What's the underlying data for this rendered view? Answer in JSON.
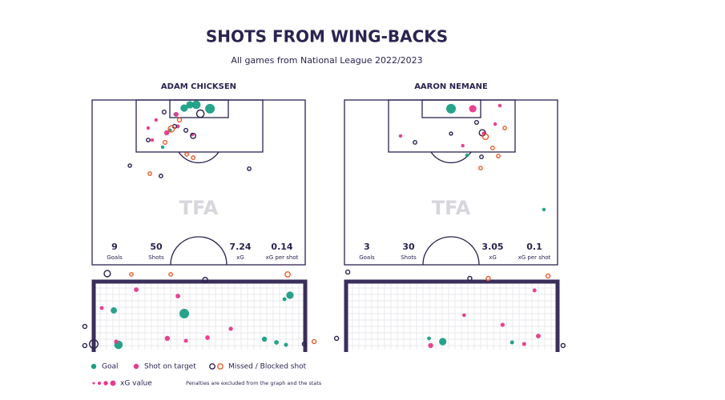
{
  "title": "SHOTS FROM WING-BACKS",
  "subtitle": "All games from National League 2022/2023",
  "watermark": "TFA",
  "markers": [
    {
      "color": "#1a9e84",
      "filled": true
    },
    {
      "color": "#e8388a",
      "filled": true
    },
    {
      "color": "#2b2350",
      "filled": false
    },
    {
      "color": "#ea5a2b",
      "filled": false
    }
  ],
  "legend": [
    {
      "label": "Goal",
      "markers": [
        0
      ]
    },
    {
      "label": "Shot on target",
      "markers": [
        1
      ]
    },
    {
      "label": "Missed / Blocked shot",
      "markers": [
        2,
        3
      ]
    }
  ],
  "xg_legend": "xG value",
  "note": "Penalties are excluded from the graph and the stats",
  "players": [
    {
      "name": "ADAM CHICKSEN",
      "stats": [
        {
          "value": 9,
          "label": "Goals"
        },
        {
          "value": 50,
          "label": "Shots"
        },
        {
          "value": 7.24,
          "label": "xG"
        },
        {
          "value": 0.14,
          "label": "xG per shot"
        }
      ],
      "shots": [
        {
          "x": 55.3,
          "y": 5.3,
          "xg": 0.3,
          "m": 0
        },
        {
          "x": 48.9,
          "y": 2.9,
          "xg": 0.25,
          "m": 0
        },
        {
          "x": 43.2,
          "y": 4.9,
          "xg": 0.2,
          "m": 0
        },
        {
          "x": 45.9,
          "y": 2.9,
          "xg": 0.2,
          "m": 0
        },
        {
          "x": 39.1,
          "y": 8.7,
          "xg": 0.05,
          "m": 0
        },
        {
          "x": 36.5,
          "y": 18.4,
          "xg": 0.04,
          "m": 0
        },
        {
          "x": 33.1,
          "y": 28.6,
          "xg": 0.03,
          "m": 0
        },
        {
          "x": 35,
          "y": 19.9,
          "xg": 0.1,
          "m": 1
        },
        {
          "x": 39.5,
          "y": 8.7,
          "xg": 0.08,
          "m": 1
        },
        {
          "x": 26.3,
          "y": 17,
          "xg": 0.03,
          "m": 1
        },
        {
          "x": 30,
          "y": 12.1,
          "xg": 0.03,
          "m": 1
        },
        {
          "x": 47,
          "y": 20.9,
          "xg": 0.04,
          "m": 1
        },
        {
          "x": 40.2,
          "y": 16,
          "xg": 0.05,
          "m": 1
        },
        {
          "x": 28.2,
          "y": 24.3,
          "xg": 0.03,
          "m": 1
        },
        {
          "x": 50.8,
          "y": 8.3,
          "xg": 0.2,
          "m": 2
        },
        {
          "x": 47.4,
          "y": 21.8,
          "xg": 0.1,
          "m": 2
        },
        {
          "x": 17.7,
          "y": 39.8,
          "xg": 0.02,
          "m": 2
        },
        {
          "x": 32.3,
          "y": 46.1,
          "xg": 0.03,
          "m": 2
        },
        {
          "x": 73.7,
          "y": 41.7,
          "xg": 0.03,
          "m": 2
        },
        {
          "x": 26.3,
          "y": 24.3,
          "xg": 0.03,
          "m": 2
        },
        {
          "x": 44,
          "y": 18.4,
          "xg": 0.04,
          "m": 2
        },
        {
          "x": 38.7,
          "y": 16,
          "xg": 0.04,
          "m": 2
        },
        {
          "x": 33.8,
          "y": 7.3,
          "xg": 0.04,
          "m": 2
        },
        {
          "x": 37.2,
          "y": 17.5,
          "xg": 0.15,
          "m": 3
        },
        {
          "x": 27.1,
          "y": 44.7,
          "xg": 0.03,
          "m": 3
        },
        {
          "x": 44.4,
          "y": 33,
          "xg": 0.03,
          "m": 3
        },
        {
          "x": 34.2,
          "y": 25.7,
          "xg": 0.04,
          "m": 3
        },
        {
          "x": 47.4,
          "y": 35,
          "xg": 0.03,
          "m": 3
        },
        {
          "x": 41,
          "y": 12.1,
          "xg": 0.05,
          "m": 3
        }
      ],
      "goal_shots": [
        {
          "x": 92.8,
          "y": 20,
          "xg": 0.2,
          "m": 0
        },
        {
          "x": 90.2,
          "y": 25.9,
          "xg": 0.05,
          "m": 0
        },
        {
          "x": 42.8,
          "y": 47,
          "xg": 0.3,
          "m": 0
        },
        {
          "x": 9.5,
          "y": 42.4,
          "xg": 0.15,
          "m": 0
        },
        {
          "x": 11.7,
          "y": 93,
          "xg": 0.25,
          "m": 0
        },
        {
          "x": 80.7,
          "y": 84.7,
          "xg": 0.1,
          "m": 0
        },
        {
          "x": 86.4,
          "y": 89.4,
          "xg": 0.08,
          "m": 0
        },
        {
          "x": 90.9,
          "y": 93,
          "xg": 0.05,
          "m": 0
        },
        {
          "x": 3.8,
          "y": 38.8,
          "xg": 0.05,
          "m": 1
        },
        {
          "x": 20.1,
          "y": 11.8,
          "xg": 0.08,
          "m": 1
        },
        {
          "x": 39.8,
          "y": 21.2,
          "xg": 0.08,
          "m": 1
        },
        {
          "x": 34.8,
          "y": 83.5,
          "xg": 0.1,
          "m": 1
        },
        {
          "x": 53.8,
          "y": 82.4,
          "xg": 0.08,
          "m": 1
        },
        {
          "x": 64.8,
          "y": 69.4,
          "xg": 0.06,
          "m": 1
        },
        {
          "x": 10.6,
          "y": 88.2,
          "xg": 0.06,
          "m": 1
        },
        {
          "x": 43.6,
          "y": 87,
          "xg": 0.05,
          "m": 1
        },
        {
          "x": 6.4,
          "y": -11.8,
          "xg": 0.15,
          "m": 2
        },
        {
          "x": 52.7,
          "y": -2.4,
          "xg": 0.1,
          "m": 2
        },
        {
          "x": -4.2,
          "y": 65.9,
          "xg": 0.05,
          "m": 2
        },
        {
          "x": -4.2,
          "y": 94.1,
          "xg": 0.05,
          "m": 2
        },
        {
          "x": 0,
          "y": 91.8,
          "xg": 0.25,
          "m": 2
        },
        {
          "x": 99.6,
          "y": 91.8,
          "xg": 0.05,
          "m": 2
        },
        {
          "x": 91.7,
          "y": -10.6,
          "xg": 0.1,
          "m": 3
        },
        {
          "x": 17.8,
          "y": -10.6,
          "xg": 0.03,
          "m": 3
        },
        {
          "x": 36.4,
          "y": -10.6,
          "xg": 0.03,
          "m": 3
        },
        {
          "x": 104.2,
          "y": 88.2,
          "xg": 0.05,
          "m": 3
        }
      ]
    },
    {
      "name": "AARON NEMANE",
      "stats": [
        {
          "value": 3,
          "label": "Goals"
        },
        {
          "value": 30,
          "label": "Shots"
        },
        {
          "value": 3.05,
          "label": "xG"
        },
        {
          "value": 0.1,
          "label": "xG per shot"
        }
      ],
      "shots": [
        {
          "x": 50,
          "y": 5.3,
          "xg": 0.3,
          "m": 0
        },
        {
          "x": 57.5,
          "y": 33.5,
          "xg": 0.03,
          "m": 0
        },
        {
          "x": 93.6,
          "y": 66.5,
          "xg": 0.03,
          "m": 0
        },
        {
          "x": 60.2,
          "y": 5.3,
          "xg": 0.2,
          "m": 1
        },
        {
          "x": 65.4,
          "y": 20.4,
          "xg": 0.06,
          "m": 1
        },
        {
          "x": 72.9,
          "y": 3.4,
          "xg": 0.03,
          "m": 1
        },
        {
          "x": 70.7,
          "y": 14.6,
          "xg": 0.03,
          "m": 1
        },
        {
          "x": 26.3,
          "y": 21.8,
          "xg": 0.03,
          "m": 1
        },
        {
          "x": 55.5,
          "y": 27.7,
          "xg": 0.03,
          "m": 1
        },
        {
          "x": 64.7,
          "y": 19.9,
          "xg": 0.15,
          "m": 2
        },
        {
          "x": 62,
          "y": 13.6,
          "xg": 0.04,
          "m": 2
        },
        {
          "x": 33.1,
          "y": 25.7,
          "xg": 0.03,
          "m": 2
        },
        {
          "x": 64.3,
          "y": 34.5,
          "xg": 0.03,
          "m": 2
        },
        {
          "x": 50,
          "y": 20.4,
          "xg": 0.01,
          "m": 2
        },
        {
          "x": 66.2,
          "y": 22.3,
          "xg": 0.12,
          "m": 3
        },
        {
          "x": 63.9,
          "y": 41.3,
          "xg": 0.03,
          "m": 3
        },
        {
          "x": 69.5,
          "y": 29.1,
          "xg": 0.03,
          "m": 3
        },
        {
          "x": 75.2,
          "y": 17,
          "xg": 0.03,
          "m": 3
        },
        {
          "x": 72.2,
          "y": 34,
          "xg": 0.03,
          "m": 3
        }
      ],
      "goal_shots": [
        {
          "x": 45.7,
          "y": 88.2,
          "xg": 0.2,
          "m": 0
        },
        {
          "x": 78.5,
          "y": 89.4,
          "xg": 0.05,
          "m": 0
        },
        {
          "x": 39.2,
          "y": 83.5,
          "xg": 0.04,
          "m": 0
        },
        {
          "x": 40,
          "y": 94,
          "xg": 0.1,
          "m": 1
        },
        {
          "x": 74,
          "y": 63.5,
          "xg": 0.06,
          "m": 1
        },
        {
          "x": 90.9,
          "y": 80,
          "xg": 0.08,
          "m": 1
        },
        {
          "x": 89.1,
          "y": 12.9,
          "xg": 0.05,
          "m": 1
        },
        {
          "x": 84.2,
          "y": 91.8,
          "xg": 0.05,
          "m": 1
        },
        {
          "x": 55.8,
          "y": 49.4,
          "xg": 0.04,
          "m": 1
        },
        {
          "x": -4.5,
          "y": 83.5,
          "xg": 0.05,
          "m": 2
        },
        {
          "x": 0.8,
          "y": -14,
          "xg": 0.05,
          "m": 2
        },
        {
          "x": 58.5,
          "y": -4.7,
          "xg": 0.05,
          "m": 2
        },
        {
          "x": 102.6,
          "y": 94,
          "xg": 0.05,
          "m": 2
        },
        {
          "x": 67.2,
          "y": -4.7,
          "xg": 0.05,
          "m": 3
        },
        {
          "x": 95.5,
          "y": -8.2,
          "xg": 0.05,
          "m": 3
        }
      ]
    }
  ]
}
